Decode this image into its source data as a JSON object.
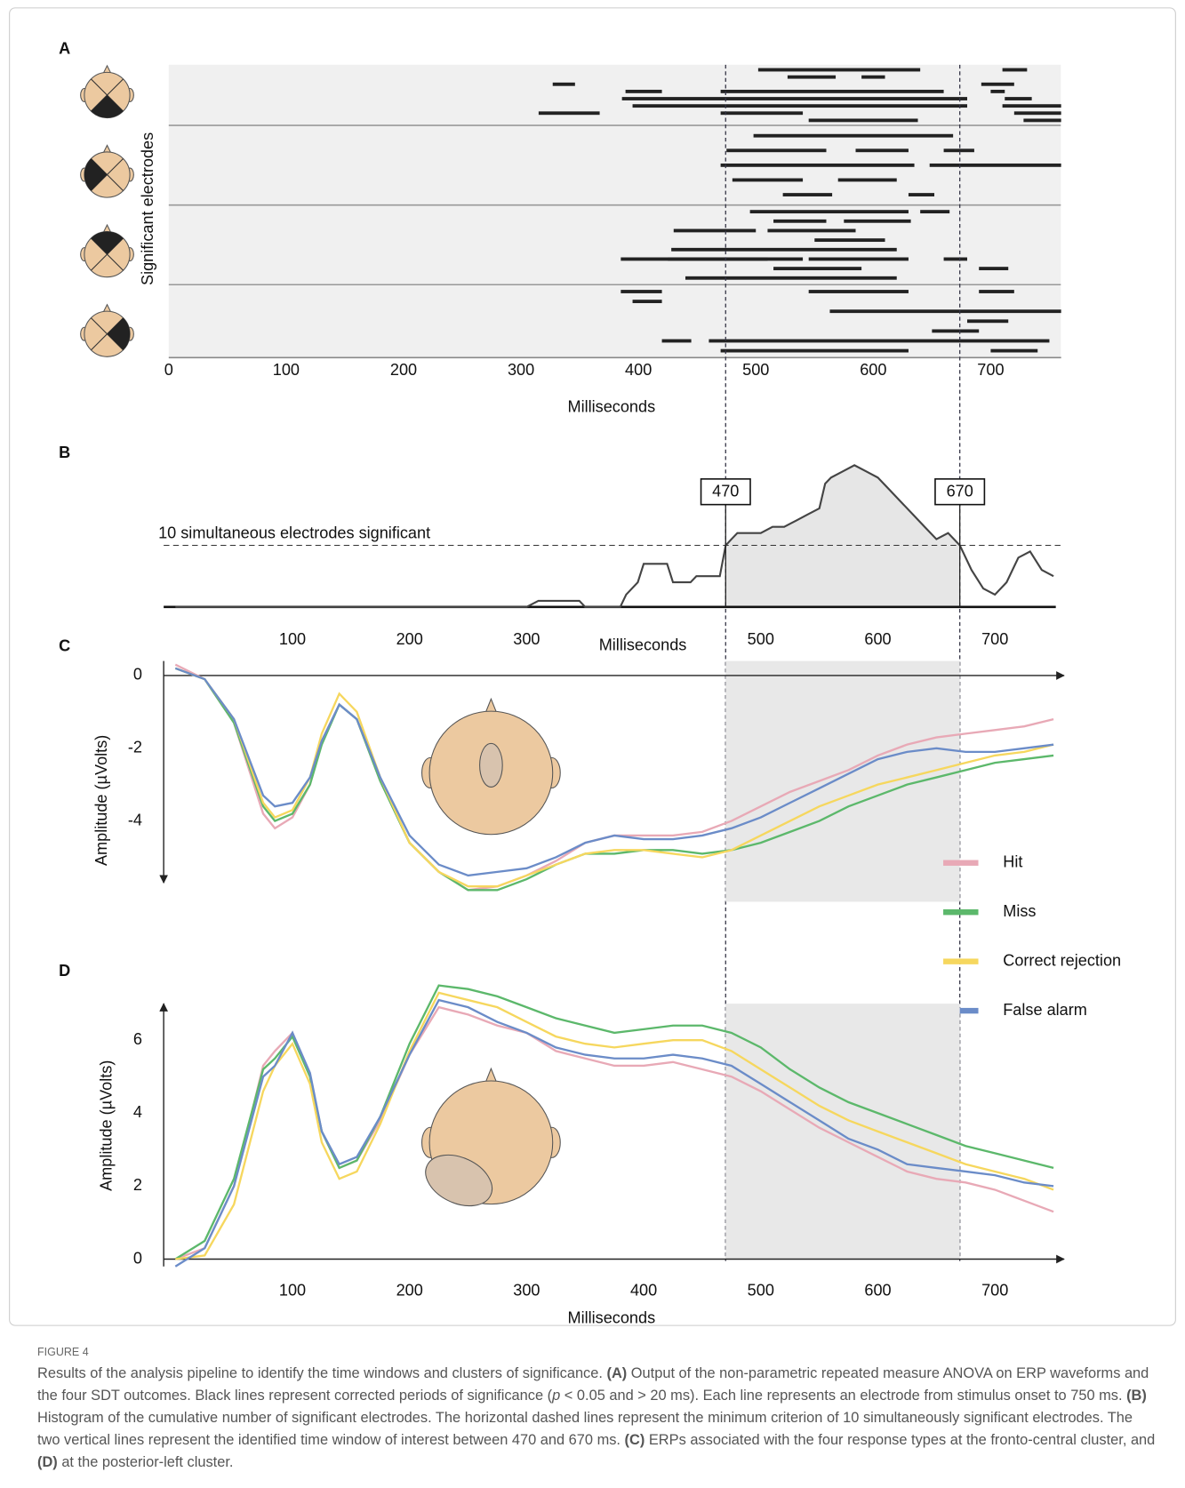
{
  "chart_data": [
    {
      "type": "timeline",
      "panel": "A",
      "ylabel": "Significant electrodes",
      "xlabel": "Milliseconds",
      "color": "#222222",
      "xlim": [
        0,
        760
      ],
      "xticks": [
        0,
        100,
        200,
        300,
        400,
        500,
        600,
        700
      ],
      "groups": [
        [
          [
            [
              502,
              640
            ],
            [
              710,
              731
            ]
          ],
          [
            [
              527,
              568
            ],
            [
              590,
              610
            ]
          ],
          [
            [
              327,
              346
            ],
            [
              692,
              720
            ]
          ],
          [
            [
              389,
              420
            ],
            [
              470,
              660
            ],
            [
              700,
              712
            ]
          ],
          [
            [
              386,
              680
            ],
            [
              712,
              735
            ]
          ],
          [
            [
              395,
              680
            ],
            [
              710,
              760
            ]
          ],
          [
            [
              315,
              367
            ],
            [
              470,
              540
            ],
            [
              720,
              760
            ]
          ],
          [
            [
              545,
              638
            ],
            [
              728,
              760
            ]
          ]
        ],
        [
          [
            [
              498,
              668
            ]
          ],
          [
            [
              475,
              560
            ],
            [
              585,
              630
            ],
            [
              660,
              686
            ]
          ],
          [
            [
              470,
              635
            ],
            [
              648,
              760
            ]
          ],
          [
            [
              480,
              540
            ],
            [
              570,
              620
            ]
          ],
          [
            [
              523,
              565
            ],
            [
              630,
              652
            ]
          ]
        ],
        [
          [
            [
              495,
              630
            ],
            [
              640,
              665
            ]
          ],
          [
            [
              515,
              560
            ],
            [
              575,
              632
            ]
          ],
          [
            [
              430,
              500
            ],
            [
              510,
              585
            ]
          ],
          [
            [
              550,
              610
            ]
          ],
          [
            [
              428,
              620
            ]
          ],
          [
            [
              385,
              510
            ],
            [
              425,
              540
            ],
            [
              545,
              630
            ],
            [
              660,
              680
            ]
          ],
          [
            [
              515,
              590
            ],
            [
              690,
              715
            ]
          ],
          [
            [
              440,
              620
            ]
          ]
        ],
        [
          [
            [
              385,
              420
            ],
            [
              545,
              630
            ],
            [
              690,
              720
            ]
          ],
          [
            [
              395,
              420
            ]
          ],
          [
            [
              563,
              760
            ]
          ],
          [
            [
              680,
              715
            ]
          ],
          [
            [
              650,
              690
            ]
          ],
          [
            [
              420,
              445
            ],
            [
              460,
              750
            ]
          ],
          [
            [
              470,
              630
            ],
            [
              700,
              740
            ]
          ]
        ]
      ]
    },
    {
      "type": "line",
      "panel": "B",
      "annotation": "10 simultaneous electrodes significant",
      "threshold": 10,
      "markers": [
        470,
        670
      ],
      "xlabel": "Milliseconds",
      "color": "#444444",
      "xlim": [
        -10,
        752
      ],
      "ylim": [
        0,
        24
      ],
      "xticks": [
        100,
        200,
        300,
        500,
        600,
        700
      ],
      "x": [
        0,
        300,
        310,
        345,
        350,
        380,
        385,
        395,
        400,
        420,
        425,
        440,
        445,
        465,
        470,
        475,
        480,
        500,
        510,
        520,
        530,
        540,
        550,
        555,
        560,
        570,
        580,
        590,
        600,
        610,
        620,
        630,
        640,
        650,
        660,
        670,
        680,
        690,
        700,
        710,
        720,
        730,
        740,
        750
      ],
      "values": [
        0,
        0,
        1,
        1,
        0,
        0,
        2,
        4,
        7,
        7,
        4,
        4,
        5,
        5,
        10,
        11,
        12,
        12,
        13,
        13,
        14,
        15,
        16,
        20,
        21,
        22,
        23,
        22,
        21,
        19,
        17,
        15,
        13,
        11,
        12,
        10,
        6,
        3,
        2,
        4,
        8,
        9,
        6,
        5
      ]
    },
    {
      "type": "line",
      "panel": "C",
      "ylabel": "Amplitude (µVolts)",
      "legend": "right",
      "xlim": [
        -10,
        759
      ],
      "ylim": [
        -5.7,
        0.4
      ],
      "yticks": [
        0,
        -2,
        -4
      ],
      "x": [
        0,
        25,
        50,
        75,
        85,
        100,
        115,
        125,
        140,
        155,
        175,
        200,
        225,
        250,
        275,
        300,
        325,
        350,
        375,
        400,
        425,
        450,
        475,
        500,
        525,
        550,
        575,
        600,
        625,
        650,
        675,
        700,
        725,
        750
      ],
      "series": [
        {
          "name": "Hit",
          "color": "#e8a9b6",
          "values": [
            0.3,
            -0.1,
            -1.3,
            -3.8,
            -4.2,
            -3.9,
            -3.0,
            -1.8,
            -0.8,
            -1.2,
            -2.9,
            -4.6,
            -5.4,
            -5.9,
            -5.8,
            -5.5,
            -5.1,
            -4.6,
            -4.4,
            -4.4,
            -4.4,
            -4.3,
            -4.0,
            -3.6,
            -3.2,
            -2.9,
            -2.6,
            -2.2,
            -1.9,
            -1.7,
            -1.6,
            -1.5,
            -1.4,
            -1.2
          ]
        },
        {
          "name": "Miss",
          "color": "#5cb86b",
          "values": [
            0.2,
            -0.1,
            -1.3,
            -3.6,
            -4.0,
            -3.8,
            -3.0,
            -1.9,
            -0.8,
            -1.2,
            -2.9,
            -4.6,
            -5.4,
            -5.9,
            -5.9,
            -5.6,
            -5.2,
            -4.9,
            -4.9,
            -4.8,
            -4.8,
            -4.9,
            -4.8,
            -4.6,
            -4.3,
            -4.0,
            -3.6,
            -3.3,
            -3.0,
            -2.8,
            -2.6,
            -2.4,
            -2.3,
            -2.2
          ]
        },
        {
          "name": "Correct rejection",
          "color": "#f6d75e",
          "values": [
            0.2,
            -0.1,
            -1.2,
            -3.5,
            -3.9,
            -3.7,
            -2.8,
            -1.6,
            -0.5,
            -1.0,
            -2.8,
            -4.6,
            -5.4,
            -5.8,
            -5.8,
            -5.5,
            -5.2,
            -4.9,
            -4.8,
            -4.8,
            -4.9,
            -5.0,
            -4.8,
            -4.4,
            -4.0,
            -3.6,
            -3.3,
            -3.0,
            -2.8,
            -2.6,
            -2.4,
            -2.2,
            -2.1,
            -1.9
          ]
        },
        {
          "name": "False alarm",
          "color": "#6b8cc8",
          "values": [
            0.2,
            -0.1,
            -1.2,
            -3.3,
            -3.6,
            -3.5,
            -2.8,
            -1.8,
            -0.8,
            -1.2,
            -2.8,
            -4.4,
            -5.2,
            -5.5,
            -5.4,
            -5.3,
            -5.0,
            -4.6,
            -4.4,
            -4.5,
            -4.5,
            -4.4,
            -4.2,
            -3.9,
            -3.5,
            -3.1,
            -2.7,
            -2.3,
            -2.1,
            -2.0,
            -2.1,
            -2.1,
            -2.0,
            -1.9
          ]
        }
      ]
    },
    {
      "type": "line",
      "panel": "D",
      "ylabel": "Amplitude (µVolts)",
      "xlabel": "Milliseconds",
      "xlim": [
        -10,
        759
      ],
      "ylim": [
        -0.2,
        7.0
      ],
      "yticks": [
        0,
        2,
        4,
        6
      ],
      "xticks": [
        100,
        200,
        300,
        400,
        500,
        600,
        700
      ],
      "x": [
        0,
        25,
        50,
        75,
        85,
        100,
        115,
        125,
        140,
        155,
        175,
        200,
        225,
        250,
        275,
        300,
        325,
        350,
        375,
        400,
        425,
        450,
        475,
        500,
        525,
        550,
        575,
        600,
        625,
        650,
        675,
        700,
        725,
        750
      ],
      "series": [
        {
          "color": "#e8a9b6",
          "values": [
            0.0,
            0.3,
            2.0,
            5.3,
            5.7,
            6.2,
            5.0,
            3.5,
            2.5,
            2.7,
            3.8,
            5.6,
            6.9,
            6.7,
            6.4,
            6.2,
            5.7,
            5.5,
            5.3,
            5.3,
            5.4,
            5.2,
            5.0,
            4.6,
            4.1,
            3.6,
            3.2,
            2.8,
            2.4,
            2.2,
            2.1,
            1.9,
            1.6,
            1.3
          ]
        },
        {
          "color": "#5cb86b",
          "values": [
            0.0,
            0.5,
            2.2,
            5.2,
            5.5,
            6.1,
            5.0,
            3.5,
            2.5,
            2.7,
            3.9,
            5.9,
            7.5,
            7.4,
            7.2,
            6.9,
            6.6,
            6.4,
            6.2,
            6.3,
            6.4,
            6.4,
            6.2,
            5.8,
            5.2,
            4.7,
            4.3,
            4.0,
            3.7,
            3.4,
            3.1,
            2.9,
            2.7,
            2.5
          ]
        },
        {
          "color": "#f6d75e",
          "values": [
            0.0,
            0.1,
            1.5,
            4.6,
            5.3,
            5.9,
            4.8,
            3.2,
            2.2,
            2.4,
            3.7,
            5.7,
            7.3,
            7.1,
            6.9,
            6.5,
            6.1,
            5.9,
            5.8,
            5.9,
            6.0,
            6.0,
            5.7,
            5.2,
            4.7,
            4.2,
            3.8,
            3.5,
            3.2,
            2.9,
            2.6,
            2.4,
            2.2,
            1.9
          ]
        },
        {
          "color": "#6b8cc8",
          "values": [
            -0.2,
            0.3,
            2.0,
            5.0,
            5.3,
            6.2,
            5.1,
            3.5,
            2.6,
            2.8,
            3.9,
            5.6,
            7.1,
            6.9,
            6.5,
            6.2,
            5.8,
            5.6,
            5.5,
            5.5,
            5.6,
            5.5,
            5.3,
            4.8,
            4.3,
            3.8,
            3.3,
            3.0,
            2.6,
            2.5,
            2.4,
            2.3,
            2.1,
            2.0
          ]
        }
      ]
    }
  ],
  "caption": {
    "label": "FIGURE 4",
    "runs": [
      {
        "text": "Results of the analysis pipeline to identify the time windows and clusters of significance. ",
        "style": "normal"
      },
      {
        "text": "(A)",
        "style": "bold"
      },
      {
        "text": " Output of the non-parametric repeated measure ANOVA on ERP waveforms and the four SDT outcomes. Black lines represent corrected periods of significance (",
        "style": "normal"
      },
      {
        "text": "p",
        "style": "italic"
      },
      {
        "text": " < 0.05 and > 20 ms). Each line represents an electrode from stimulus onset to 750 ms. ",
        "style": "normal"
      },
      {
        "text": "(B)",
        "style": "bold"
      },
      {
        "text": " Histogram of the cumulative number of significant electrodes. The horizontal dashed lines represent the minimum criterion of 10 simultaneously significant electrodes. The two vertical lines represent the identified time window of interest between 470 and 670 ms. ",
        "style": "normal"
      },
      {
        "text": "(C)",
        "style": "bold"
      },
      {
        "text": " ERPs associated with the four response types at the fronto-central cluster, and ",
        "style": "normal"
      },
      {
        "text": "(D)",
        "style": "bold"
      },
      {
        "text": " at the posterior-left cluster.",
        "style": "normal"
      }
    ]
  }
}
